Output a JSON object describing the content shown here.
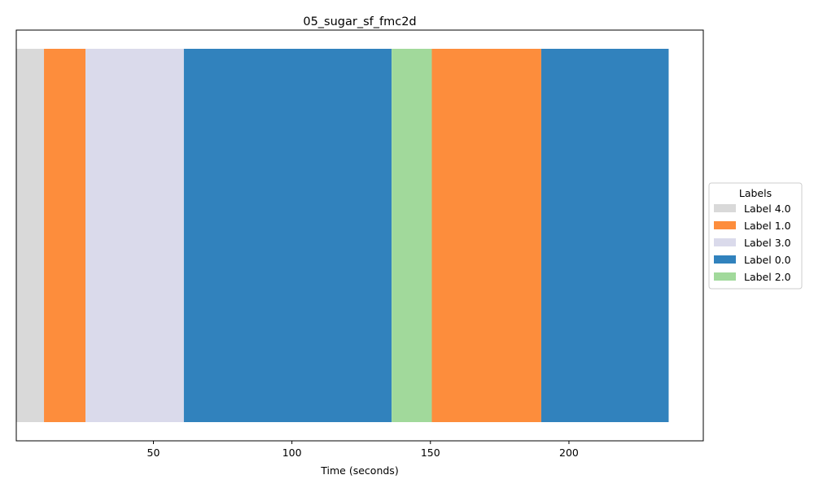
{
  "chart_data": {
    "type": "bar",
    "orientation": "horizontal-timeline",
    "title": "05_sugar_sf_fmc2d",
    "xlabel": "Time (seconds)",
    "ylabel": "",
    "xlim": [
      0.5,
      248.5
    ],
    "xticks": [
      50,
      100,
      150,
      200
    ],
    "grid": false,
    "legend": {
      "title": "Labels",
      "placement": "center-right-outside",
      "entries": [
        {
          "name": "Label 4.0",
          "color": "#d9d9d9"
        },
        {
          "name": "Label 1.0",
          "color": "#fd8d3c"
        },
        {
          "name": "Label 3.0",
          "color": "#dadaeb"
        },
        {
          "name": "Label 0.0",
          "color": "#3182bd"
        },
        {
          "name": "Label 2.0",
          "color": "#a1d99b"
        }
      ]
    },
    "segments": [
      {
        "label": "Label 4.0",
        "start": 0.5,
        "end": 10.5
      },
      {
        "label": "Label 1.0",
        "start": 10.5,
        "end": 25.5
      },
      {
        "label": "Label 3.0",
        "start": 25.5,
        "end": 61.0
      },
      {
        "label": "Label 0.0",
        "start": 61.0,
        "end": 136.0
      },
      {
        "label": "Label 2.0",
        "start": 136.0,
        "end": 150.5
      },
      {
        "label": "Label 1.0",
        "start": 150.5,
        "end": 190.0
      },
      {
        "label": "Label 0.0",
        "start": 190.0,
        "end": 236.0
      }
    ]
  }
}
